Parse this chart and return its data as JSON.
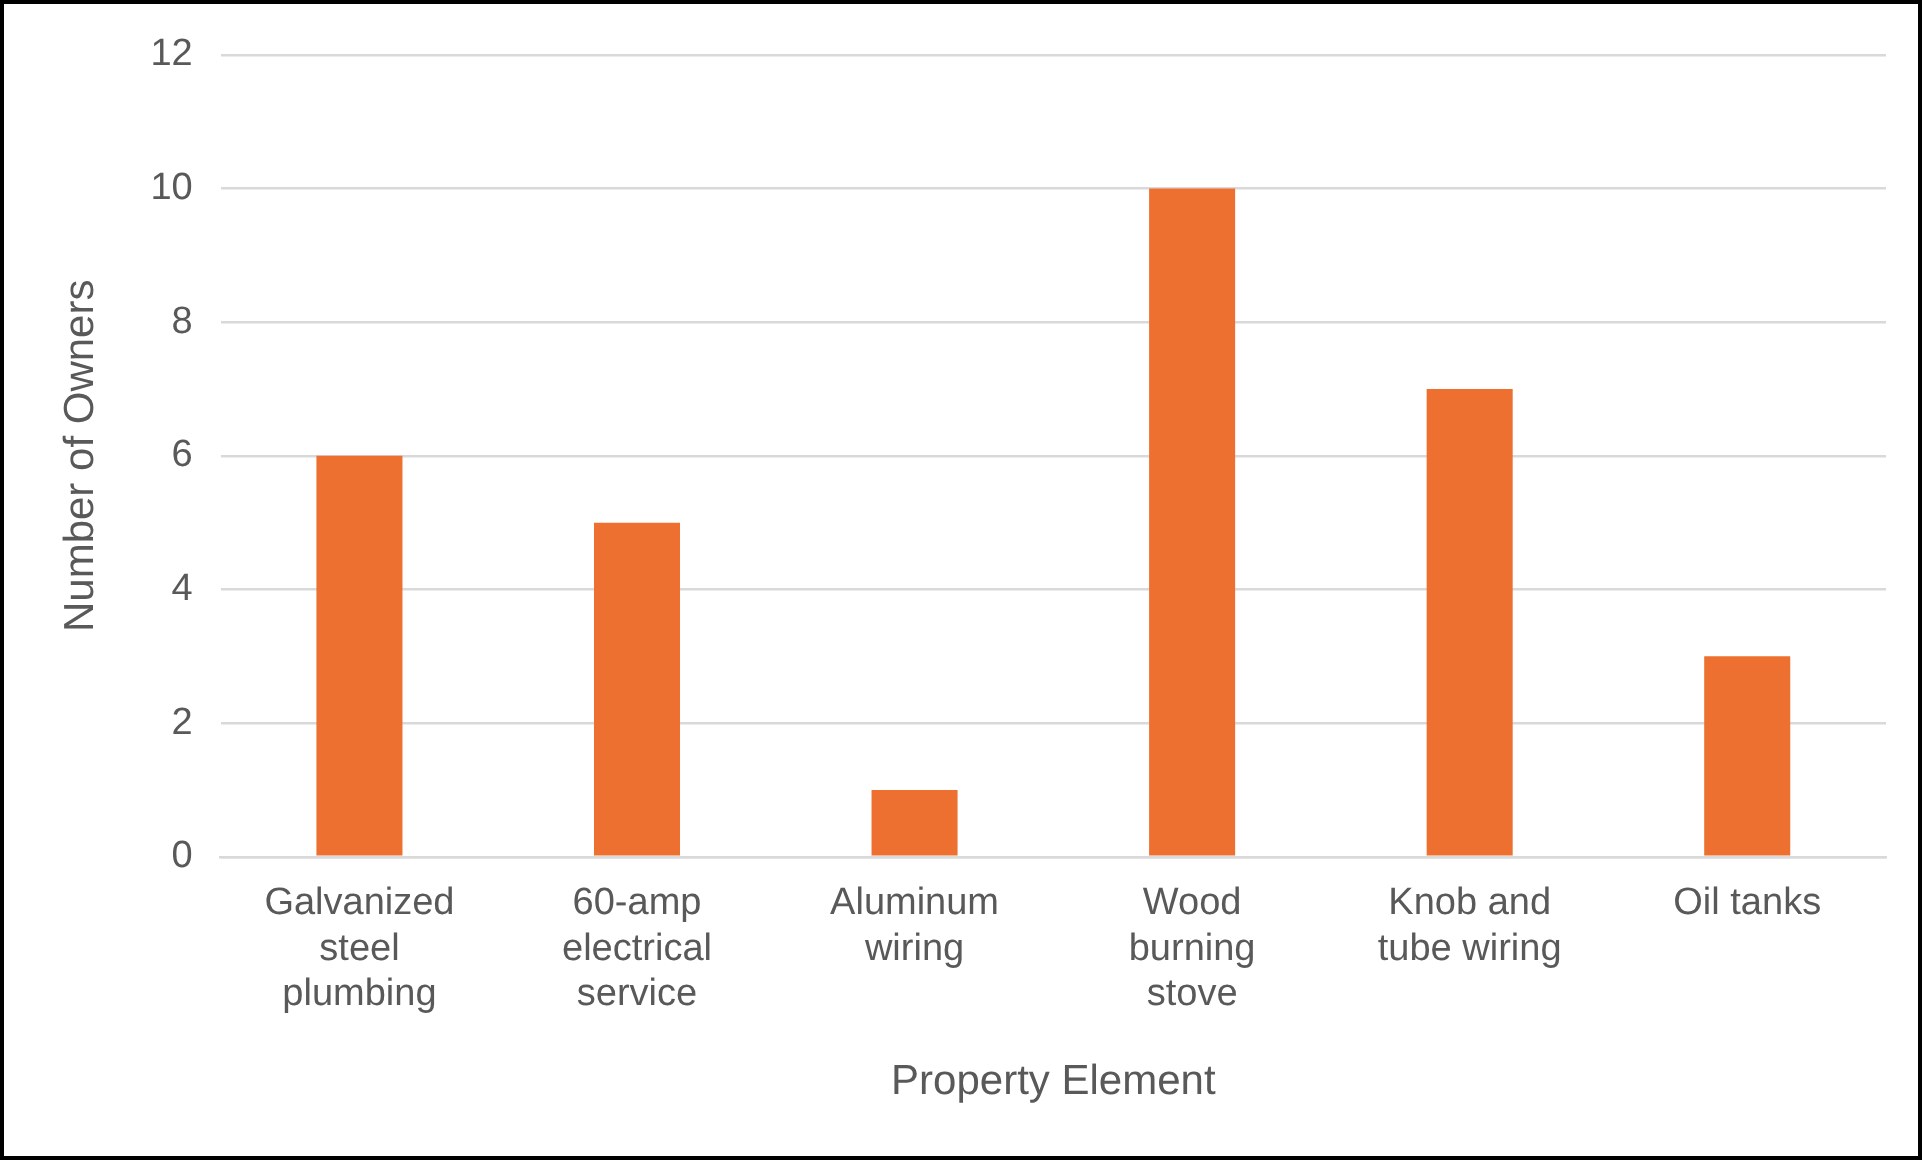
{
  "chart_data": {
    "type": "bar",
    "xlabel": "Property Element",
    "ylabel": "Number of Owners",
    "categories": [
      "Galvanized steel plumbing",
      "60-amp electrical service",
      "Aluminum wiring",
      "Wood burning stove",
      "Knob and tube wiring",
      "Oil tanks"
    ],
    "values": [
      6,
      5,
      1,
      10,
      7,
      3
    ],
    "color": "#ed7031",
    "ylim": [
      0,
      12
    ],
    "yticks": [
      0,
      2,
      4,
      6,
      8,
      10,
      12
    ],
    "grid": "y",
    "legend": false
  }
}
